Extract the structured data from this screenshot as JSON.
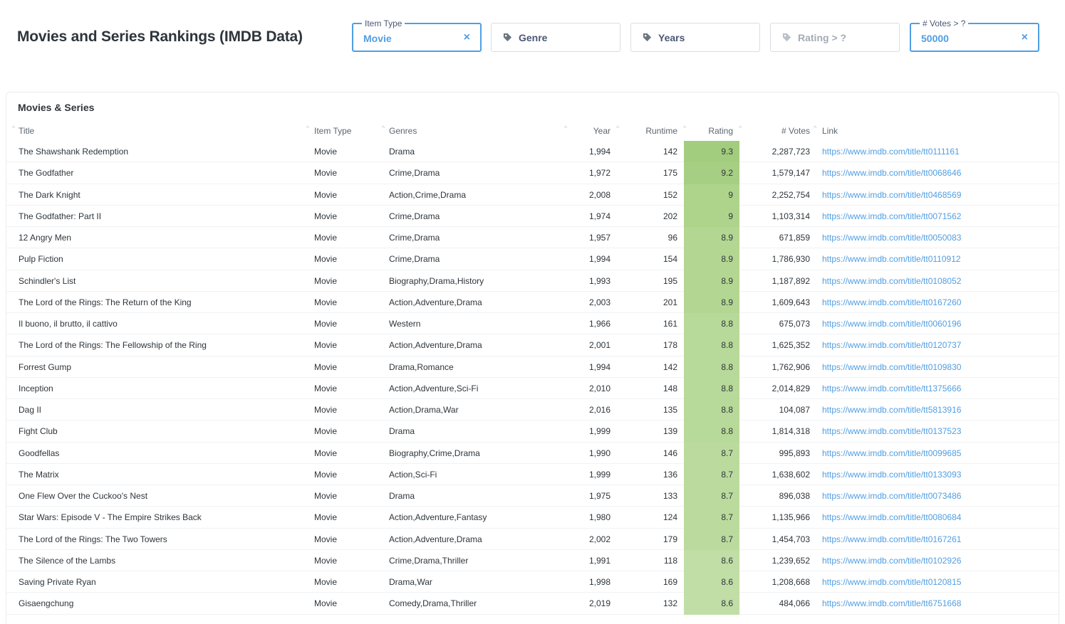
{
  "page": {
    "title": "Movies and Series Rankings (IMDB Data)"
  },
  "filters": {
    "item_type": {
      "label": "Item Type",
      "value": "Movie",
      "clear": "×"
    },
    "genre": {
      "placeholder": "Genre"
    },
    "years": {
      "placeholder": "Years"
    },
    "rating": {
      "placeholder": "Rating > ?"
    },
    "votes": {
      "label": "# Votes > ?",
      "value": "50000",
      "clear": "×"
    }
  },
  "card": {
    "title": "Movies & Series"
  },
  "table": {
    "headers": {
      "title": "Title",
      "item_type": "Item Type",
      "genres": "Genres",
      "year": "Year",
      "runtime": "Runtime",
      "rating": "Rating",
      "votes": "# Votes",
      "link": "Link"
    },
    "rating_colors": {
      "9.3": "#a3cd7e",
      "9.2": "#a7cf83",
      "9": "#aed48c",
      "8.9": "#b3d793",
      "8.8": "#b7d999",
      "8.7": "#bbdb9e",
      "8.6": "#c0dea5"
    },
    "rows": [
      {
        "title": "The Shawshank Redemption",
        "item_type": "Movie",
        "genres": "Drama",
        "year": "1,994",
        "runtime": "142",
        "rating": "9.3",
        "votes": "2,287,723",
        "link": "https://www.imdb.com/title/tt0111161"
      },
      {
        "title": "The Godfather",
        "item_type": "Movie",
        "genres": "Crime,Drama",
        "year": "1,972",
        "runtime": "175",
        "rating": "9.2",
        "votes": "1,579,147",
        "link": "https://www.imdb.com/title/tt0068646"
      },
      {
        "title": "The Dark Knight",
        "item_type": "Movie",
        "genres": "Action,Crime,Drama",
        "year": "2,008",
        "runtime": "152",
        "rating": "9",
        "votes": "2,252,754",
        "link": "https://www.imdb.com/title/tt0468569"
      },
      {
        "title": "The Godfather: Part II",
        "item_type": "Movie",
        "genres": "Crime,Drama",
        "year": "1,974",
        "runtime": "202",
        "rating": "9",
        "votes": "1,103,314",
        "link": "https://www.imdb.com/title/tt0071562"
      },
      {
        "title": "12 Angry Men",
        "item_type": "Movie",
        "genres": "Crime,Drama",
        "year": "1,957",
        "runtime": "96",
        "rating": "8.9",
        "votes": "671,859",
        "link": "https://www.imdb.com/title/tt0050083"
      },
      {
        "title": "Pulp Fiction",
        "item_type": "Movie",
        "genres": "Crime,Drama",
        "year": "1,994",
        "runtime": "154",
        "rating": "8.9",
        "votes": "1,786,930",
        "link": "https://www.imdb.com/title/tt0110912"
      },
      {
        "title": "Schindler's List",
        "item_type": "Movie",
        "genres": "Biography,Drama,History",
        "year": "1,993",
        "runtime": "195",
        "rating": "8.9",
        "votes": "1,187,892",
        "link": "https://www.imdb.com/title/tt0108052"
      },
      {
        "title": "The Lord of the Rings: The Return of the King",
        "item_type": "Movie",
        "genres": "Action,Adventure,Drama",
        "year": "2,003",
        "runtime": "201",
        "rating": "8.9",
        "votes": "1,609,643",
        "link": "https://www.imdb.com/title/tt0167260"
      },
      {
        "title": "Il buono, il brutto, il cattivo",
        "item_type": "Movie",
        "genres": "Western",
        "year": "1,966",
        "runtime": "161",
        "rating": "8.8",
        "votes": "675,073",
        "link": "https://www.imdb.com/title/tt0060196"
      },
      {
        "title": "The Lord of the Rings: The Fellowship of the Ring",
        "item_type": "Movie",
        "genres": "Action,Adventure,Drama",
        "year": "2,001",
        "runtime": "178",
        "rating": "8.8",
        "votes": "1,625,352",
        "link": "https://www.imdb.com/title/tt0120737"
      },
      {
        "title": "Forrest Gump",
        "item_type": "Movie",
        "genres": "Drama,Romance",
        "year": "1,994",
        "runtime": "142",
        "rating": "8.8",
        "votes": "1,762,906",
        "link": "https://www.imdb.com/title/tt0109830"
      },
      {
        "title": "Inception",
        "item_type": "Movie",
        "genres": "Action,Adventure,Sci-Fi",
        "year": "2,010",
        "runtime": "148",
        "rating": "8.8",
        "votes": "2,014,829",
        "link": "https://www.imdb.com/title/tt1375666"
      },
      {
        "title": "Dag II",
        "item_type": "Movie",
        "genres": "Action,Drama,War",
        "year": "2,016",
        "runtime": "135",
        "rating": "8.8",
        "votes": "104,087",
        "link": "https://www.imdb.com/title/tt5813916"
      },
      {
        "title": "Fight Club",
        "item_type": "Movie",
        "genres": "Drama",
        "year": "1,999",
        "runtime": "139",
        "rating": "8.8",
        "votes": "1,814,318",
        "link": "https://www.imdb.com/title/tt0137523"
      },
      {
        "title": "Goodfellas",
        "item_type": "Movie",
        "genres": "Biography,Crime,Drama",
        "year": "1,990",
        "runtime": "146",
        "rating": "8.7",
        "votes": "995,893",
        "link": "https://www.imdb.com/title/tt0099685"
      },
      {
        "title": "The Matrix",
        "item_type": "Movie",
        "genres": "Action,Sci-Fi",
        "year": "1,999",
        "runtime": "136",
        "rating": "8.7",
        "votes": "1,638,602",
        "link": "https://www.imdb.com/title/tt0133093"
      },
      {
        "title": "One Flew Over the Cuckoo's Nest",
        "item_type": "Movie",
        "genres": "Drama",
        "year": "1,975",
        "runtime": "133",
        "rating": "8.7",
        "votes": "896,038",
        "link": "https://www.imdb.com/title/tt0073486"
      },
      {
        "title": "Star Wars: Episode V - The Empire Strikes Back",
        "item_type": "Movie",
        "genres": "Action,Adventure,Fantasy",
        "year": "1,980",
        "runtime": "124",
        "rating": "8.7",
        "votes": "1,135,966",
        "link": "https://www.imdb.com/title/tt0080684"
      },
      {
        "title": "The Lord of the Rings: The Two Towers",
        "item_type": "Movie",
        "genres": "Action,Adventure,Drama",
        "year": "2,002",
        "runtime": "179",
        "rating": "8.7",
        "votes": "1,454,703",
        "link": "https://www.imdb.com/title/tt0167261"
      },
      {
        "title": "The Silence of the Lambs",
        "item_type": "Movie",
        "genres": "Crime,Drama,Thriller",
        "year": "1,991",
        "runtime": "118",
        "rating": "8.6",
        "votes": "1,239,652",
        "link": "https://www.imdb.com/title/tt0102926"
      },
      {
        "title": "Saving Private Ryan",
        "item_type": "Movie",
        "genres": "Drama,War",
        "year": "1,998",
        "runtime": "169",
        "rating": "8.6",
        "votes": "1,208,668",
        "link": "https://www.imdb.com/title/tt0120815"
      },
      {
        "title": "Gisaengchung",
        "item_type": "Movie",
        "genres": "Comedy,Drama,Thriller",
        "year": "2,019",
        "runtime": "132",
        "rating": "8.6",
        "votes": "484,066",
        "link": "https://www.imdb.com/title/tt6751668"
      }
    ]
  }
}
